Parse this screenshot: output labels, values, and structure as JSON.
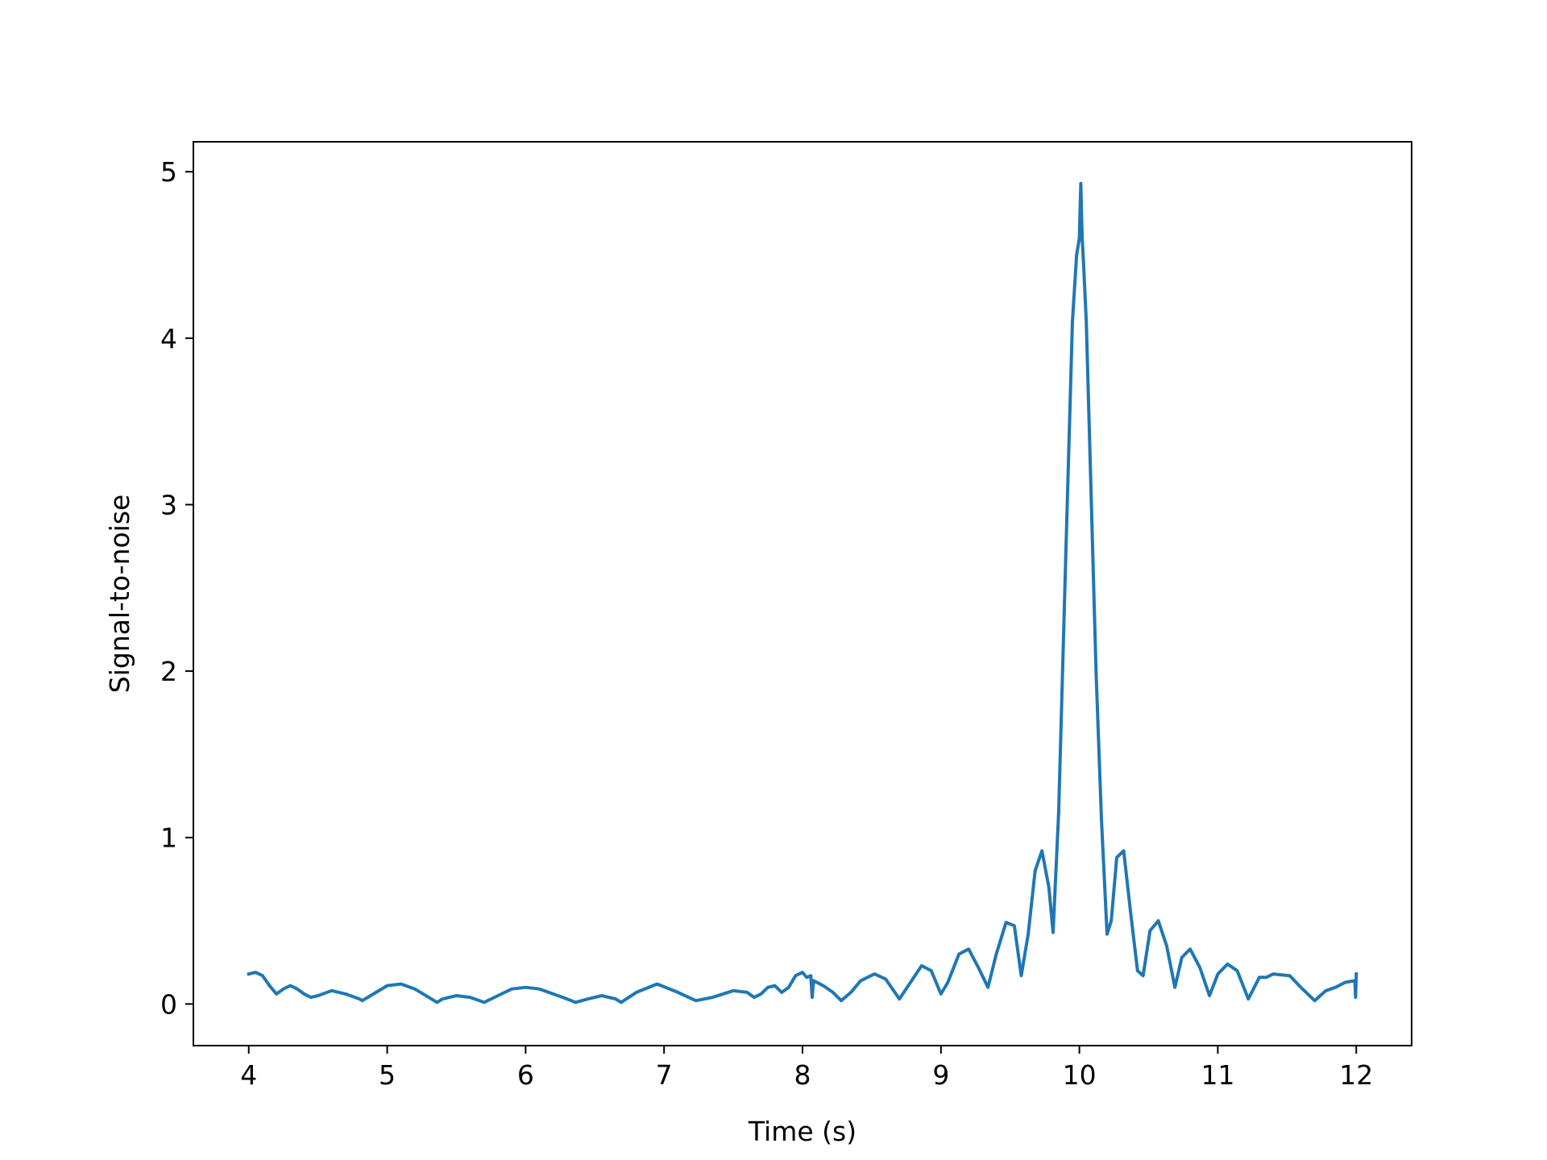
{
  "chart_data": {
    "type": "line",
    "title": "",
    "xlabel": "Time (s)",
    "ylabel": "Signal-to-noise",
    "xlim": [
      3.6,
      12.4
    ],
    "ylim": [
      -0.25,
      5.18
    ],
    "xticks": [
      4,
      5,
      6,
      7,
      8,
      9,
      10,
      11,
      12
    ],
    "xtick_labels": [
      "4",
      "5",
      "6",
      "7",
      "8",
      "9",
      "10",
      "11",
      "12"
    ],
    "yticks": [
      0,
      1,
      2,
      3,
      4,
      5
    ],
    "ytick_labels": [
      "0",
      "1",
      "2",
      "3",
      "4",
      "5"
    ],
    "grid": false,
    "legend": "none",
    "series": [
      {
        "color": "#1f77b4",
        "x": [
          4.0,
          4.05,
          4.1,
          4.15,
          4.2,
          4.25,
          4.3,
          4.35,
          4.4,
          4.45,
          4.5,
          4.6,
          4.7,
          4.8,
          4.82,
          4.9,
          5.0,
          5.1,
          5.2,
          5.3,
          5.36,
          5.4,
          5.5,
          5.6,
          5.7,
          5.8,
          5.9,
          6.0,
          6.1,
          6.2,
          6.3,
          6.36,
          6.45,
          6.55,
          6.65,
          6.69,
          6.8,
          6.95,
          7.1,
          7.23,
          7.35,
          7.5,
          7.6,
          7.65,
          7.7,
          7.75,
          7.8,
          7.85,
          7.9,
          7.95,
          8.0,
          8.03,
          8.06,
          8.07,
          8.08,
          8.15,
          8.22,
          8.28,
          8.35,
          8.42,
          8.52,
          8.6,
          8.7,
          8.78,
          8.86,
          8.93,
          9.0,
          9.05,
          9.13,
          9.2,
          9.27,
          9.34,
          9.4,
          9.47,
          9.53,
          9.58,
          9.63,
          9.68,
          9.73,
          9.78,
          9.81,
          9.85,
          9.9,
          9.95,
          9.98,
          10.0,
          10.01,
          10.02,
          10.03,
          10.05,
          10.08,
          10.12,
          10.16,
          10.2,
          10.23,
          10.27,
          10.32,
          10.37,
          10.42,
          10.46,
          10.51,
          10.57,
          10.63,
          10.69,
          10.74,
          10.8,
          10.87,
          10.94,
          11.0,
          11.07,
          11.14,
          11.22,
          11.3,
          11.35,
          11.4,
          11.52,
          11.6,
          11.7,
          11.78,
          11.85,
          11.92,
          11.99,
          11.995,
          12.0
        ],
        "y": [
          0.18,
          0.19,
          0.17,
          0.11,
          0.06,
          0.09,
          0.11,
          0.09,
          0.06,
          0.04,
          0.05,
          0.08,
          0.06,
          0.03,
          0.02,
          0.06,
          0.11,
          0.12,
          0.09,
          0.04,
          0.01,
          0.03,
          0.05,
          0.04,
          0.01,
          0.05,
          0.09,
          0.1,
          0.09,
          0.06,
          0.03,
          0.01,
          0.03,
          0.05,
          0.03,
          0.01,
          0.07,
          0.12,
          0.07,
          0.02,
          0.04,
          0.08,
          0.07,
          0.04,
          0.06,
          0.1,
          0.11,
          0.07,
          0.1,
          0.17,
          0.19,
          0.16,
          0.17,
          0.04,
          0.14,
          0.11,
          0.07,
          0.02,
          0.07,
          0.14,
          0.18,
          0.15,
          0.03,
          0.13,
          0.23,
          0.2,
          0.06,
          0.13,
          0.3,
          0.33,
          0.22,
          0.1,
          0.3,
          0.49,
          0.47,
          0.17,
          0.42,
          0.8,
          0.92,
          0.7,
          0.43,
          1.15,
          2.65,
          4.1,
          4.5,
          4.6,
          4.93,
          4.6,
          4.45,
          4.1,
          3.2,
          2.0,
          1.1,
          0.42,
          0.5,
          0.88,
          0.92,
          0.55,
          0.2,
          0.17,
          0.44,
          0.5,
          0.35,
          0.1,
          0.28,
          0.33,
          0.22,
          0.05,
          0.18,
          0.24,
          0.2,
          0.03,
          0.16,
          0.16,
          0.18,
          0.17,
          0.1,
          0.02,
          0.08,
          0.1,
          0.13,
          0.14,
          0.04,
          0.18
        ]
      }
    ]
  }
}
